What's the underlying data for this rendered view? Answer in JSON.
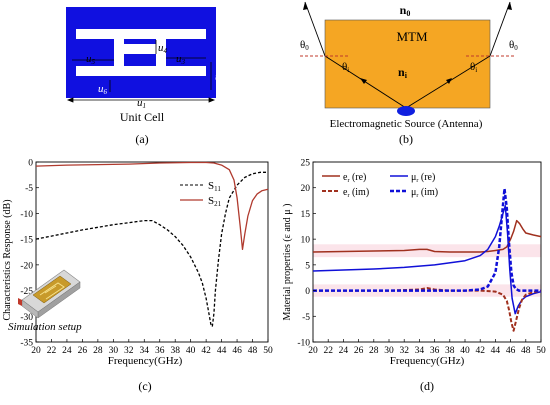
{
  "panel_a": {
    "labels": {
      "u1": "u",
      "u1_sub": "1",
      "u2": "u",
      "u2_sub": "2",
      "u3": "u",
      "u3_sub": "3",
      "u4": "u",
      "u4_sub": "4",
      "u5": "u",
      "u5_sub": "5",
      "u6": "u",
      "u6_sub": "6"
    },
    "caption": "Unit Cell",
    "tag": "(a)",
    "colors": {
      "metal": "#1010e0",
      "gap": "#ffffff"
    }
  },
  "panel_b": {
    "n0": "n",
    "n0_sub": "0",
    "mtm": "MTM",
    "ni": "n",
    "ni_sub": "i",
    "theta0_left": "θ",
    "theta0_left_sub": "0",
    "theta0_right": "θ",
    "theta0_right_sub": "0",
    "thetai_left": "θ",
    "thetai_left_sub": "i",
    "thetai_right": "θ",
    "thetai_right_sub": "i",
    "caption": "Electromagnetic Source (Antenna)",
    "tag": "(b)",
    "colors": {
      "slab": "#f5a623",
      "source": "#1020e0"
    }
  },
  "chart_data": [
    {
      "type": "line",
      "panel": "c",
      "ylabel": "Characteristics Response (dB)",
      "xlabel": "Frequency(GHz)",
      "xlim": [
        20,
        50
      ],
      "ylim": [
        -35,
        0
      ],
      "xticks": [
        20,
        22,
        24,
        26,
        28,
        30,
        32,
        34,
        36,
        38,
        40,
        42,
        44,
        46,
        48,
        50
      ],
      "yticks": [
        0,
        -5,
        -10,
        -15,
        -20,
        -25,
        -30,
        -35
      ],
      "legend": [
        {
          "name": "S",
          "sub": "11",
          "style": "dashed",
          "color": "#000000"
        },
        {
          "name": "S",
          "sub": "21",
          "style": "solid",
          "color": "#b03a2e"
        }
      ],
      "annotation": "Simulation setup",
      "series": [
        {
          "name": "S11",
          "color": "#000000",
          "dash": "3,2",
          "x": [
            20,
            22,
            24,
            26,
            28,
            30,
            32,
            34,
            35,
            36,
            37,
            38,
            39,
            40,
            41,
            41.5,
            42,
            42.3,
            42.6,
            42.8,
            43,
            43.2,
            43.6,
            44,
            44.5,
            45,
            46,
            47,
            48,
            49,
            50
          ],
          "y": [
            -15,
            -14.4,
            -13.8,
            -13.2,
            -12.7,
            -12.2,
            -11.8,
            -11.4,
            -11.4,
            -12.2,
            -13.2,
            -14.5,
            -16.2,
            -18.5,
            -21.5,
            -23.5,
            -26.5,
            -29,
            -31.5,
            -32,
            -29.5,
            -25,
            -19,
            -14,
            -10,
            -7,
            -4.5,
            -3,
            -2.3,
            -2,
            -2
          ]
        },
        {
          "name": "S21",
          "color": "#b03a2e",
          "dash": "",
          "x": [
            20,
            24,
            28,
            32,
            36,
            40,
            42,
            43,
            44,
            45,
            45.6,
            46,
            46.4,
            46.7,
            47,
            47.4,
            48,
            48.6,
            49.2,
            50
          ],
          "y": [
            -0.8,
            -0.6,
            -0.5,
            -0.4,
            -0.2,
            -0.1,
            -0.1,
            -0.2,
            -0.6,
            -1.5,
            -3.5,
            -7,
            -12.5,
            -17,
            -14,
            -10.5,
            -7.5,
            -6.2,
            -5.6,
            -5.3
          ]
        }
      ]
    },
    {
      "type": "line",
      "panel": "d",
      "ylabel": "Material properties (ε and μ )",
      "xlabel": "Frequency(GHz)",
      "xlim": [
        20,
        50
      ],
      "ylim": [
        -10,
        25
      ],
      "xticks": [
        20,
        22,
        24,
        26,
        28,
        30,
        32,
        34,
        36,
        38,
        40,
        42,
        44,
        46,
        48,
        50
      ],
      "yticks": [
        -10,
        -5,
        0,
        5,
        10,
        15,
        20,
        25
      ],
      "legend": [
        {
          "name": "e",
          "sub": "r",
          "suffix": " (re)",
          "style": "solid",
          "color": "#a0301e"
        },
        {
          "name": "μ",
          "sub": "r",
          "suffix": " (re)",
          "style": "solid",
          "color": "#1010d8"
        },
        {
          "name": "e",
          "sub": "r",
          "suffix": " (im)",
          "style": "dashed",
          "color": "#a0301e"
        },
        {
          "name": "μ",
          "sub": "r",
          "suffix": " (im)",
          "style": "dashed",
          "color": "#1010d8"
        }
      ],
      "series": [
        {
          "name": "er_re",
          "color": "#a0301e",
          "dash": "",
          "width": 1.5,
          "x": [
            20,
            24,
            28,
            32,
            34,
            35,
            36,
            38,
            40,
            42,
            43,
            44,
            45,
            45.5,
            46,
            46.4,
            46.8,
            47.2,
            47.6,
            48,
            49,
            50
          ],
          "y": [
            7.5,
            7.6,
            7.7,
            7.8,
            8.0,
            8.0,
            7.6,
            7.5,
            7.5,
            7.5,
            7.6,
            7.8,
            8.0,
            8.5,
            10.0,
            11.5,
            13.6,
            13.0,
            12.0,
            11.2,
            10.8,
            10.5
          ]
        },
        {
          "name": "mr_re",
          "color": "#1010d8",
          "dash": "",
          "width": 1.5,
          "x": [
            20,
            24,
            28,
            32,
            36,
            40,
            42,
            43,
            44,
            44.5,
            45,
            45.3,
            45.6,
            45.9,
            46.2,
            46.6,
            47,
            47.5,
            48,
            49,
            50
          ],
          "y": [
            3.8,
            4.0,
            4.2,
            4.5,
            5.0,
            5.8,
            6.8,
            8.0,
            10.5,
            12.5,
            15.0,
            16.5,
            11.0,
            4.0,
            -1.5,
            -4.5,
            -3.0,
            -1.8,
            -1.2,
            -0.6,
            -0.2
          ]
        },
        {
          "name": "er_im",
          "color": "#a0301e",
          "dash": "4,2",
          "width": 2,
          "x": [
            20,
            30,
            34,
            35,
            36,
            38,
            42,
            44,
            45,
            45.5,
            45.8,
            46.1,
            46.4,
            46.7,
            47.1,
            47.5,
            48,
            49,
            50
          ],
          "y": [
            0,
            0,
            0.2,
            0.5,
            0.2,
            0,
            0,
            -0.2,
            -0.8,
            -2.0,
            -3.8,
            -6.2,
            -7.8,
            -6.0,
            -3.5,
            -1.8,
            -0.8,
            -0.3,
            0
          ]
        },
        {
          "name": "mr_im",
          "color": "#1010d8",
          "dash": "4,2",
          "width": 2.5,
          "x": [
            20,
            30,
            36,
            40,
            42,
            43,
            44,
            44.5,
            44.9,
            45.2,
            45.5,
            45.8,
            46.1,
            46.4,
            46.7,
            47.1,
            47.5,
            48,
            49,
            50
          ],
          "y": [
            0,
            0,
            0,
            0,
            0.2,
            0.8,
            3.5,
            8.5,
            15.0,
            19.8,
            16.0,
            9.0,
            3.5,
            1.0,
            0.3,
            0,
            0,
            0,
            0,
            0
          ]
        }
      ]
    }
  ],
  "panel_tags": {
    "c": "(c)",
    "d": "(d)"
  }
}
